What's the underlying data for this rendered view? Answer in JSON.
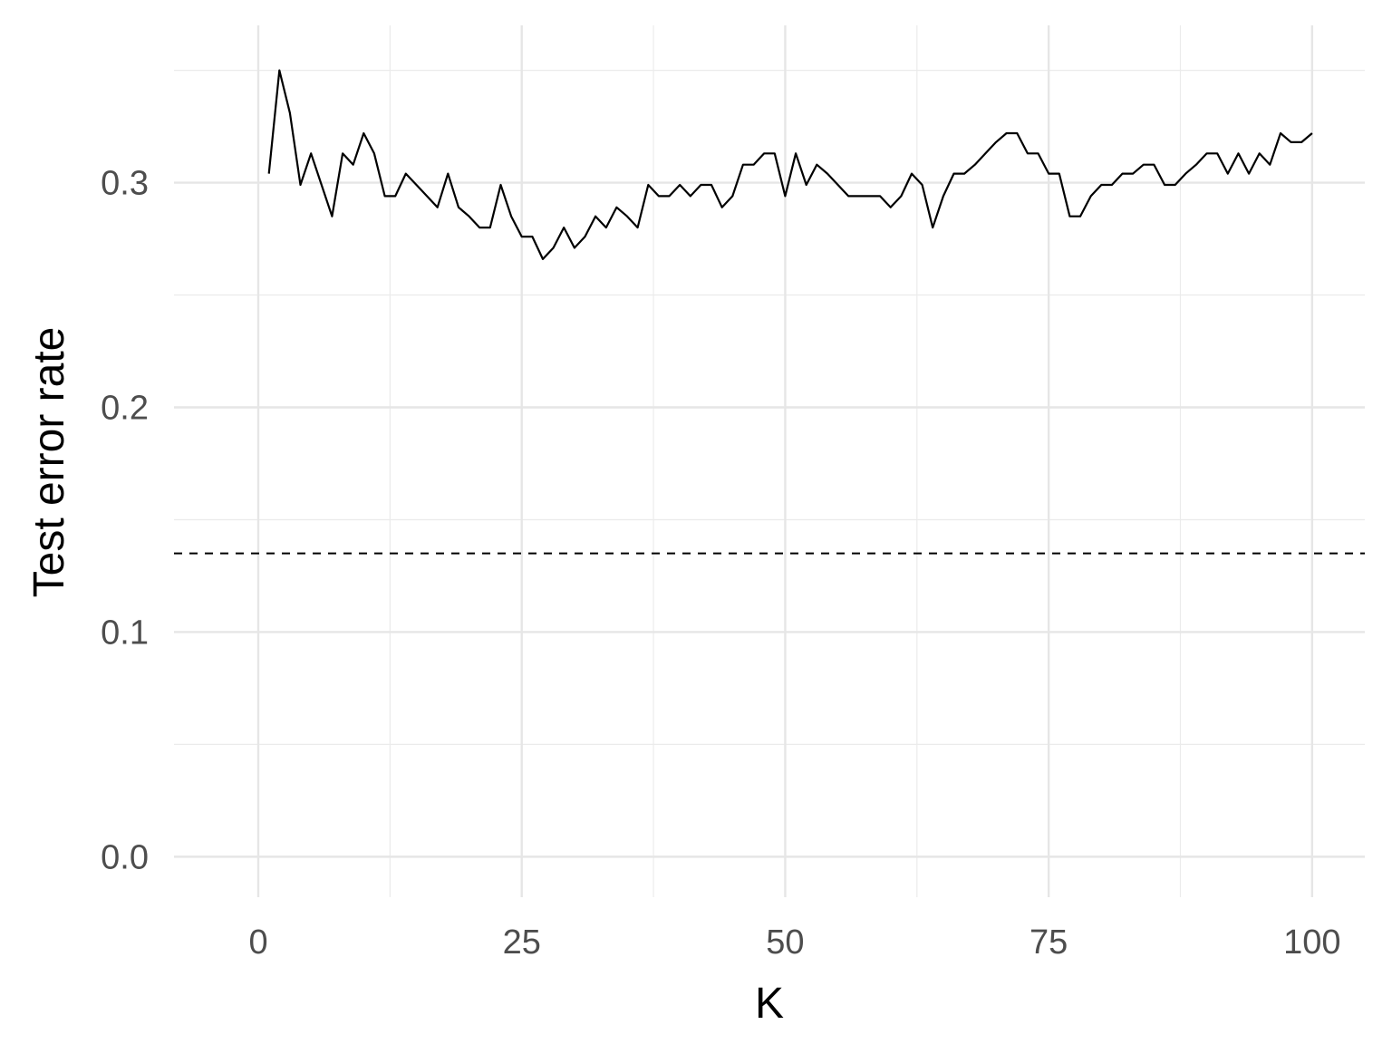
{
  "chart_data": {
    "type": "line",
    "title": "",
    "xlabel": "K",
    "ylabel": "Test error rate",
    "xlim": [
      -8,
      105
    ],
    "ylim": [
      -0.018,
      0.37
    ],
    "x_ticks": [
      0,
      25,
      50,
      75,
      100
    ],
    "x_tick_labels": [
      "0",
      "25",
      "50",
      "75",
      "100"
    ],
    "x_minor_ticks": [
      12.5,
      37.5,
      62.5,
      87.5
    ],
    "y_ticks": [
      0.0,
      0.1,
      0.2,
      0.3
    ],
    "y_tick_labels": [
      "0.0",
      "0.1",
      "0.2",
      "0.3"
    ],
    "y_minor_ticks": [
      0.05,
      0.15,
      0.25,
      0.35
    ],
    "grid": true,
    "hline": {
      "y": 0.135,
      "style": "dashed",
      "color": "#000000"
    },
    "series": [
      {
        "color": "#000000",
        "x": [
          1,
          2,
          3,
          4,
          5,
          6,
          7,
          8,
          9,
          10,
          11,
          12,
          13,
          14,
          15,
          16,
          17,
          18,
          19,
          20,
          21,
          22,
          23,
          24,
          25,
          26,
          27,
          28,
          29,
          30,
          31,
          32,
          33,
          34,
          35,
          36,
          37,
          38,
          39,
          40,
          41,
          42,
          43,
          44,
          45,
          46,
          47,
          48,
          49,
          50,
          51,
          52,
          53,
          54,
          55,
          56,
          57,
          58,
          59,
          60,
          61,
          62,
          63,
          64,
          65,
          66,
          67,
          68,
          69,
          70,
          71,
          72,
          73,
          74,
          75,
          76,
          77,
          78,
          79,
          80,
          81,
          82,
          83,
          84,
          85,
          86,
          87,
          88,
          89,
          90,
          91,
          92,
          93,
          94,
          95,
          96,
          97,
          98,
          99,
          100
        ],
        "y": [
          0.304,
          0.35,
          0.331,
          0.299,
          0.313,
          0.299,
          0.285,
          0.313,
          0.308,
          0.322,
          0.313,
          0.294,
          0.294,
          0.304,
          0.299,
          0.294,
          0.289,
          0.304,
          0.289,
          0.285,
          0.28,
          0.28,
          0.299,
          0.285,
          0.276,
          0.276,
          0.266,
          0.271,
          0.28,
          0.271,
          0.276,
          0.285,
          0.28,
          0.289,
          0.285,
          0.28,
          0.299,
          0.294,
          0.294,
          0.299,
          0.294,
          0.299,
          0.299,
          0.289,
          0.294,
          0.308,
          0.308,
          0.313,
          0.313,
          0.294,
          0.313,
          0.299,
          0.308,
          0.304,
          0.299,
          0.294,
          0.294,
          0.294,
          0.294,
          0.289,
          0.294,
          0.304,
          0.299,
          0.28,
          0.294,
          0.304,
          0.304,
          0.308,
          0.313,
          0.318,
          0.322,
          0.322,
          0.313,
          0.313,
          0.304,
          0.304,
          0.285,
          0.285,
          0.294,
          0.299,
          0.299,
          0.304,
          0.304,
          0.308,
          0.308,
          0.299,
          0.299,
          0.304,
          0.308,
          0.313,
          0.313,
          0.304,
          0.313,
          0.304,
          0.313,
          0.308,
          0.322,
          0.318,
          0.318,
          0.322
        ]
      }
    ]
  }
}
